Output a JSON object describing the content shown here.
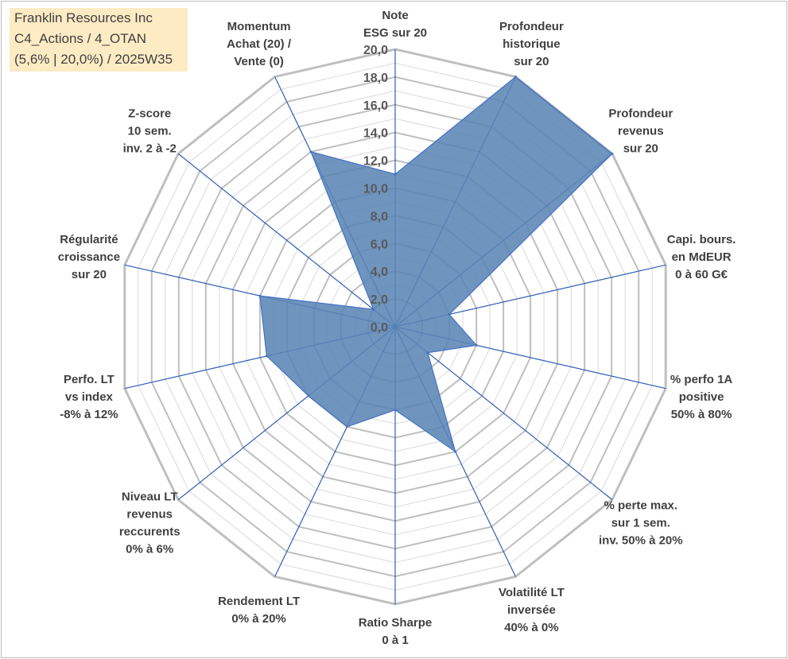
{
  "title_box": {
    "line1": "Franklin Resources Inc",
    "line2": "C4_Actions / 4_OTAN",
    "line3": "(5,6% | 20,0%) / 2025W35"
  },
  "colors": {
    "fill": "#5b85b5",
    "series_line": "#4472c4",
    "grid_major": "#bfbfbf",
    "grid_minor": "#d9d9d9",
    "spoke": "#2f5fb3",
    "title_bg": "#fdebc4"
  },
  "chart_data": {
    "type": "radar",
    "rmin": 0,
    "rmax": 20,
    "ticks": [
      "0,0",
      "2,0",
      "4,0",
      "6,0",
      "8,0",
      "10,0",
      "12,0",
      "14,0",
      "16,0",
      "18,0",
      "20,0"
    ],
    "grid": true,
    "categories": [
      [
        "Note",
        "ESG sur 20"
      ],
      [
        "Profondeur",
        "historique",
        "sur 20"
      ],
      [
        "Profondeur",
        "revenus",
        "sur 20"
      ],
      [
        "Capi. bours.",
        "en MdEUR",
        "0 à 60 G€"
      ],
      [
        "% perfo 1A",
        "positive",
        "50% à 80%"
      ],
      [
        "% perte max.",
        "sur 1 sem.",
        "inv. 50% à 20%"
      ],
      [
        "Volatilité LT",
        "inversée",
        "40% à 0%"
      ],
      [
        "Ratio Sharpe",
        "0 à 1"
      ],
      [
        "Rendement LT",
        "0% à 20%"
      ],
      [
        "Niveau LT",
        "revenus",
        "reccurents",
        "0% à 6%"
      ],
      [
        "Perfo. LT",
        "vs index",
        "-8% à 12%"
      ],
      [
        "Régularité",
        "croissance",
        "sur 20"
      ],
      [
        "Z-score",
        "10 sem.",
        "inv. 2 à -2"
      ],
      [
        "Momentum",
        "Achat (20) /",
        "Vente (0)"
      ]
    ],
    "values": [
      11.0,
      20.0,
      20.0,
      4.0,
      6.0,
      3.0,
      10.0,
      6.0,
      8.0,
      8.0,
      9.5,
      10.0,
      2.0,
      14.0
    ]
  }
}
